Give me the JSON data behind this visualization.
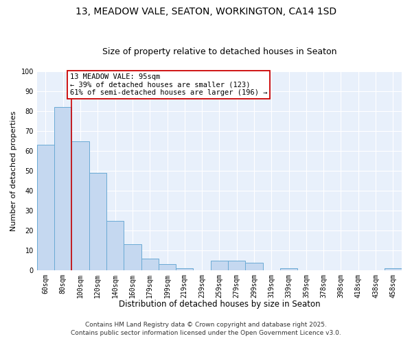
{
  "title1": "13, MEADOW VALE, SEATON, WORKINGTON, CA14 1SD",
  "title2": "Size of property relative to detached houses in Seaton",
  "xlabel": "Distribution of detached houses by size in Seaton",
  "ylabel": "Number of detached properties",
  "categories": [
    "60sqm",
    "80sqm",
    "100sqm",
    "120sqm",
    "140sqm",
    "160sqm",
    "179sqm",
    "199sqm",
    "219sqm",
    "239sqm",
    "259sqm",
    "279sqm",
    "299sqm",
    "319sqm",
    "339sqm",
    "359sqm",
    "378sqm",
    "398sqm",
    "418sqm",
    "438sqm",
    "458sqm"
  ],
  "values": [
    63,
    82,
    65,
    49,
    25,
    13,
    6,
    3,
    1,
    0,
    5,
    5,
    4,
    0,
    1,
    0,
    0,
    0,
    0,
    0,
    1
  ],
  "bar_color": "#c5d8f0",
  "bar_edge_color": "#6aaad4",
  "vline_color": "#cc0000",
  "annotation_text": "13 MEADOW VALE: 95sqm\n← 39% of detached houses are smaller (123)\n61% of semi-detached houses are larger (196) →",
  "annotation_box_facecolor": "#ffffff",
  "annotation_box_edgecolor": "#cc0000",
  "ylim": [
    0,
    100
  ],
  "yticks": [
    0,
    10,
    20,
    30,
    40,
    50,
    60,
    70,
    80,
    90,
    100
  ],
  "bg_color": "#e8f0fb",
  "grid_color": "#ffffff",
  "footer1": "Contains HM Land Registry data © Crown copyright and database right 2025.",
  "footer2": "Contains public sector information licensed under the Open Government Licence v3.0.",
  "title_fontsize": 10,
  "subtitle_fontsize": 9,
  "axis_label_fontsize": 8,
  "tick_fontsize": 7,
  "annotation_fontsize": 7.5,
  "footer_fontsize": 6.5,
  "vline_bar_index": 2
}
